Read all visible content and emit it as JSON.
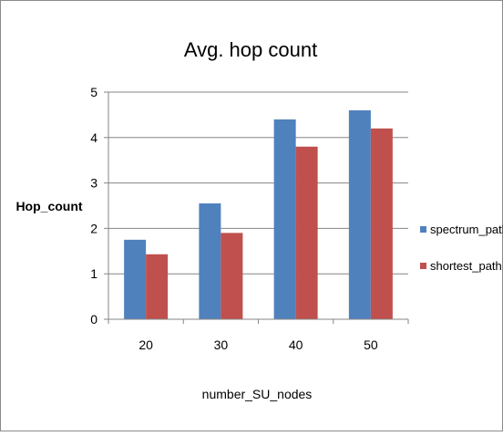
{
  "chart_data": {
    "type": "bar",
    "title": "Avg. hop count",
    "xlabel": "number_SU_nodes",
    "ylabel": "Hop_count",
    "categories": [
      "20",
      "30",
      "40",
      "50"
    ],
    "ylim": [
      0,
      5
    ],
    "yticks": [
      "0",
      "1",
      "2",
      "3",
      "4",
      "5"
    ],
    "grid": true,
    "legend_position": "right",
    "series": [
      {
        "name": "spectrum_path",
        "color": "#4F81BD",
        "values": [
          1.75,
          2.55,
          4.4,
          4.6
        ]
      },
      {
        "name": "shortest_path",
        "color": "#C0504D",
        "values": [
          1.43,
          1.9,
          3.8,
          4.2
        ]
      }
    ]
  }
}
